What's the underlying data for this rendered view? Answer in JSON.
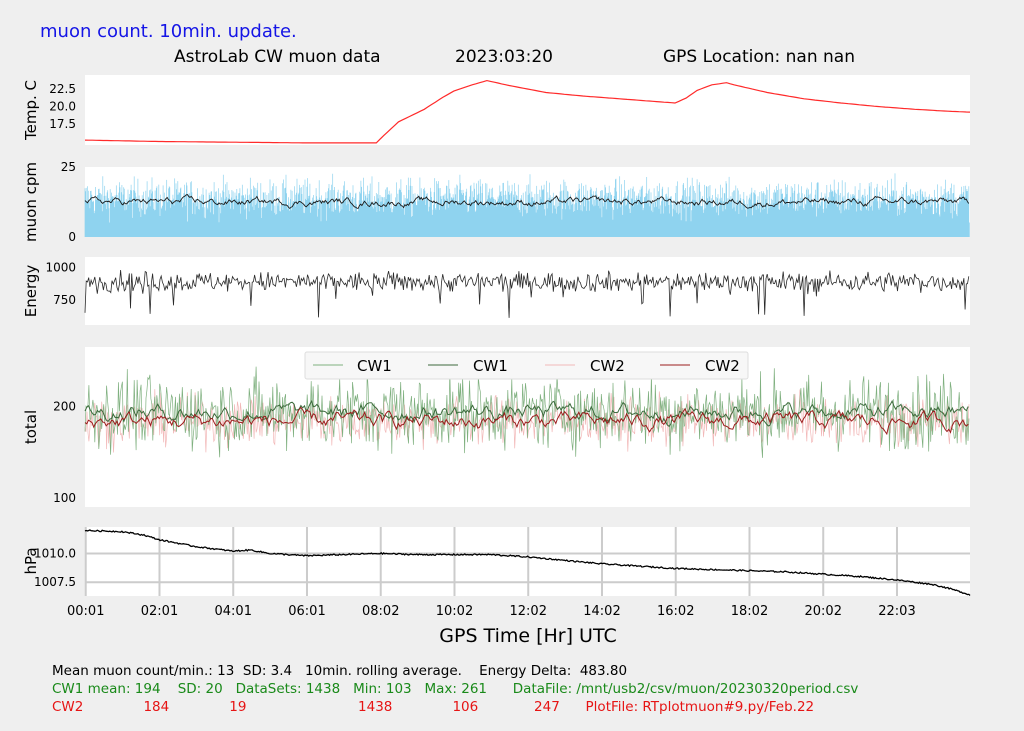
{
  "header": {
    "update_label": "muon count.  10min. update.",
    "title_left": "AstroLab CW muon data",
    "title_date": "2023:03:20",
    "title_gps": "GPS Location: nan   nan"
  },
  "colors": {
    "background": "#efefef",
    "panel": "#ffffff",
    "temp": "#ff2a2a",
    "muon_raw": "#8fd3ef",
    "muon_avg": "#1a1a1a",
    "energy": "#2a2a2a",
    "cw1_raw": "#7fb07f",
    "cw1_avg": "#3c6a3c",
    "cw2_raw": "#f2b8b8",
    "cw2_avg": "#9b1c1c",
    "pressure": "#000000",
    "header_blue": "#1414e6",
    "green_text": "#1a8a1a",
    "red_text": "#e61414"
  },
  "chart_data": {
    "type": "line",
    "xlabel": "GPS Time  [Hr] UTC",
    "x_ticks": [
      "00:01",
      "02:01",
      "04:01",
      "06:01",
      "08:02",
      "10:02",
      "12:02",
      "14:02",
      "16:02",
      "18:02",
      "20:02",
      "22:03"
    ],
    "x_range_hours": [
      0,
      24
    ],
    "panels": [
      {
        "id": "temp",
        "ylabel": "Temp. C",
        "ylim": [
          14.5,
          24.5
        ],
        "yticks": [
          17.5,
          20.0,
          22.5
        ],
        "grid": false,
        "series": [
          {
            "x": [
              0,
              2,
              4,
              6,
              7.9,
              8.05,
              8.5,
              9.2,
              9.7,
              10.0,
              10.5,
              10.9,
              11.5,
              12.5,
              13.5,
              14.5,
              15.5,
              16.0,
              16.3,
              16.6,
              17.0,
              17.4,
              17.6,
              18.5,
              19.5,
              20.5,
              21.5,
              22.5,
              23.5,
              24.0
            ],
            "y": [
              15.2,
              15.0,
              14.9,
              14.8,
              14.8,
              15.6,
              17.8,
              19.6,
              21.3,
              22.2,
              23.1,
              23.7,
              23.0,
              22.0,
              21.5,
              21.1,
              20.7,
              20.5,
              21.2,
              22.3,
              23.1,
              23.4,
              23.1,
              22.0,
              21.1,
              20.5,
              20.0,
              19.6,
              19.3,
              19.2
            ]
          }
        ]
      },
      {
        "id": "muon",
        "ylabel": "muon cpm",
        "ylim": [
          0,
          25
        ],
        "yticks": [
          0,
          25
        ],
        "grid": false,
        "mean_raw": 13,
        "mean_avg": 12.5
      },
      {
        "id": "energy",
        "ylabel": "Energy",
        "ylim": [
          560,
          1080
        ],
        "yticks": [
          750,
          1000
        ],
        "grid": false,
        "mean": 890
      },
      {
        "id": "total",
        "ylabel": "total",
        "ylim": [
          90,
          265
        ],
        "yticks": [
          100,
          200
        ],
        "grid": false,
        "legend": [
          "CW1",
          "CW1",
          "CW2",
          "CW2"
        ],
        "legend_placement": "top-center",
        "cw1_mean": 194,
        "cw2_mean": 184
      },
      {
        "id": "pressure",
        "ylabel": "hPa",
        "ylim": [
          1006.3,
          1012.3
        ],
        "yticks": [
          1007.5,
          1010.0
        ],
        "grid": true,
        "series": [
          {
            "x": [
              0,
              1,
              1.6,
              2,
              3,
              4,
              4.5,
              5,
              6,
              7,
              8,
              9,
              10,
              11,
              12,
              13,
              14,
              15,
              16,
              17,
              18,
              19,
              20,
              21,
              22,
              23,
              23.5,
              24.0
            ],
            "y": [
              1012.0,
              1011.9,
              1011.6,
              1011.2,
              1010.6,
              1010.2,
              1010.3,
              1010.0,
              1009.8,
              1009.9,
              1010.0,
              1009.9,
              1009.9,
              1009.9,
              1009.7,
              1009.4,
              1009.1,
              1008.9,
              1008.7,
              1008.6,
              1008.5,
              1008.4,
              1008.2,
              1008.0,
              1007.7,
              1007.3,
              1006.9,
              1006.4
            ]
          }
        ]
      }
    ]
  },
  "footer": {
    "line1": "Mean muon count/min.: 13  SD: 3.4   10min. rolling average.    Energy Delta:  483.80",
    "line2": "CW1 mean: 194    SD: 20   DataSets: 1438   Min: 103   Max: 261      DataFile: /mnt/usb2/csv/muon/20230320period.csv",
    "line3": "CW2              184              19                          1438              106             247      PlotFile: RTplotmuon#9.py/Feb.22"
  }
}
